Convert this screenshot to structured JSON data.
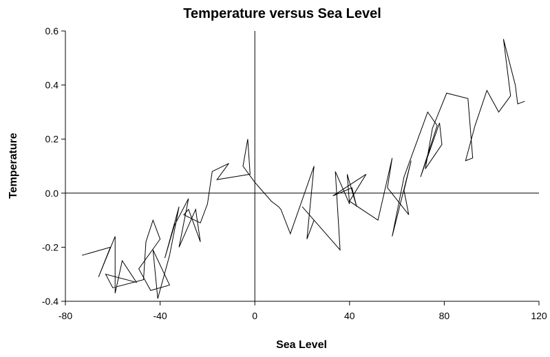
{
  "chart_data": {
    "type": "line",
    "title": "Temperature versus Sea Level",
    "x_label": "Sea Level",
    "y_label": "Temperature",
    "color": "#000000",
    "xlim": [
      -80,
      120
    ],
    "xticks": [
      -80,
      -40,
      0,
      40,
      80,
      120
    ],
    "ylim": [
      -0.4,
      0.6
    ],
    "yticks": [
      -0.4,
      -0.2,
      {
        "value": 0,
        "label": "0.0"
      },
      0.2,
      0.4,
      0.6
    ],
    "x": [
      -73,
      -61,
      -66,
      -59,
      -59,
      -56,
      -50,
      -63,
      -60,
      -47,
      -46,
      -43,
      -40,
      -49,
      -44,
      -36,
      -43,
      -41,
      -36,
      -32,
      -38,
      -34,
      -28,
      -32,
      -25,
      -23,
      -28,
      -30,
      -23,
      -20,
      -18,
      -11,
      -16,
      -2,
      -3,
      -5,
      0,
      3,
      7,
      10,
      11,
      15,
      25,
      22,
      25,
      20,
      36,
      34,
      40,
      39,
      43,
      41,
      33,
      47,
      40,
      52,
      58,
      56,
      65,
      63,
      66,
      58,
      63,
      68,
      73,
      77,
      70,
      78,
      79,
      72,
      75,
      81,
      90,
      92,
      89,
      93,
      98,
      103,
      108,
      105,
      110,
      111,
      114
    ],
    "values": [
      -0.23,
      -0.2,
      -0.31,
      -0.16,
      -0.37,
      -0.25,
      -0.33,
      -0.3,
      -0.35,
      -0.32,
      -0.18,
      -0.1,
      -0.17,
      -0.28,
      -0.36,
      -0.34,
      -0.21,
      -0.39,
      -0.23,
      -0.05,
      -0.24,
      -0.12,
      -0.02,
      -0.2,
      -0.06,
      -0.18,
      -0.06,
      -0.08,
      -0.11,
      -0.04,
      0.08,
      0.11,
      0.05,
      0.07,
      0.2,
      0.1,
      0.04,
      0.01,
      -0.03,
      -0.05,
      -0.06,
      -0.15,
      0.1,
      -0.17,
      -0.1,
      -0.05,
      -0.21,
      0.08,
      -0.04,
      0.07,
      -0.05,
      0.02,
      -0.01,
      0.07,
      -0.03,
      -0.1,
      0.13,
      0.02,
      -0.08,
      0.01,
      0.12,
      -0.16,
      0.06,
      0.18,
      0.3,
      0.25,
      0.06,
      0.26,
      0.18,
      0.09,
      0.24,
      0.37,
      0.35,
      0.13,
      0.12,
      0.25,
      0.38,
      0.3,
      0.36,
      0.57,
      0.4,
      0.33,
      0.34
    ]
  }
}
